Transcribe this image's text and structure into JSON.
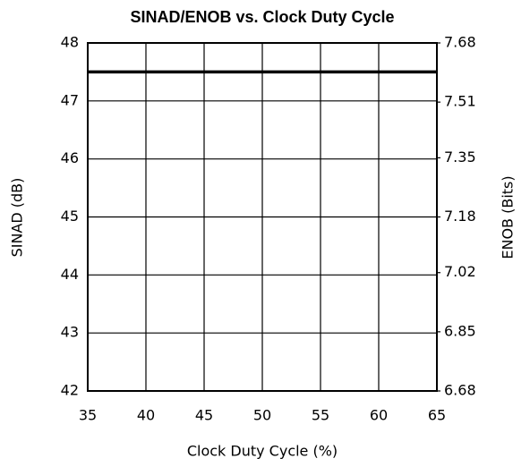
{
  "chart_data": {
    "type": "line",
    "title": "SINAD/ENOB vs. Clock Duty Cycle",
    "xlabel": "Clock Duty Cycle (%)",
    "ylabel": "SINAD (dB)",
    "y2label": "ENOB (Bits)",
    "x": [
      35,
      40,
      45,
      50,
      55,
      60,
      65
    ],
    "series": [
      {
        "name": "SINAD",
        "color": "#000000",
        "values": [
          47.5,
          47.5,
          47.5,
          47.5,
          47.5,
          47.5,
          47.5
        ]
      }
    ],
    "xlim": [
      35,
      65
    ],
    "xticks": [
      35,
      40,
      45,
      50,
      55,
      60,
      65
    ],
    "ylim": [
      42,
      48
    ],
    "yticks": [
      42,
      43,
      44,
      45,
      46,
      47,
      48
    ],
    "y2lim": [
      6.68,
      7.68
    ],
    "y2ticks": [
      6.68,
      6.85,
      7.02,
      7.18,
      7.35,
      7.51,
      7.68
    ],
    "grid": true
  }
}
